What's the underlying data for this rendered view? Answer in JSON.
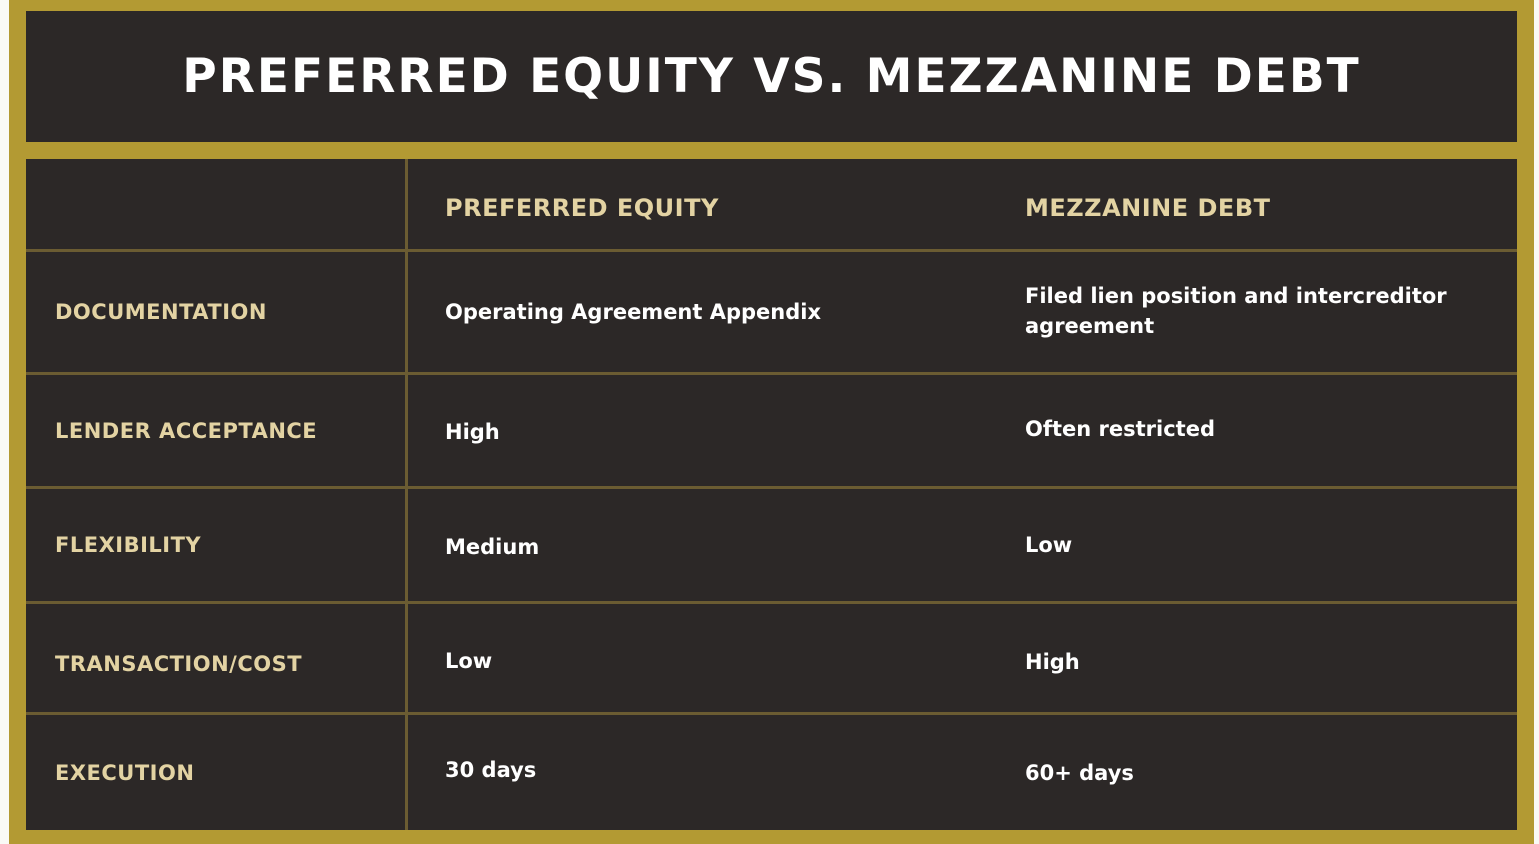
{
  "title": "PREFERRED EQUITY VS. MEZZANINE DEBT",
  "colors": {
    "frame_gold": "#b39a33",
    "panel_dark": "#2c2827",
    "header_text": "#e3d3a3",
    "value_text": "#ffffff",
    "grid_line": "#6b5c32"
  },
  "table": {
    "columns": [
      "",
      "PREFERRED EQUITY",
      "MEZZANINE DEBT"
    ],
    "rows": [
      {
        "label": "DOCUMENTATION",
        "preferred_equity": "Operating Agreement Appendix",
        "mezzanine_debt": "Filed lien position and intercreditor agreement"
      },
      {
        "label": "LENDER ACCEPTANCE",
        "preferred_equity": "High",
        "mezzanine_debt": "Often restricted"
      },
      {
        "label": "FLEXIBILITY",
        "preferred_equity": "Medium",
        "mezzanine_debt": "Low"
      },
      {
        "label": "TRANSACTION/COST",
        "preferred_equity": "Low",
        "mezzanine_debt": "High"
      },
      {
        "label": "EXECUTION",
        "preferred_equity": "30 days",
        "mezzanine_debt": "60+ days"
      }
    ]
  }
}
